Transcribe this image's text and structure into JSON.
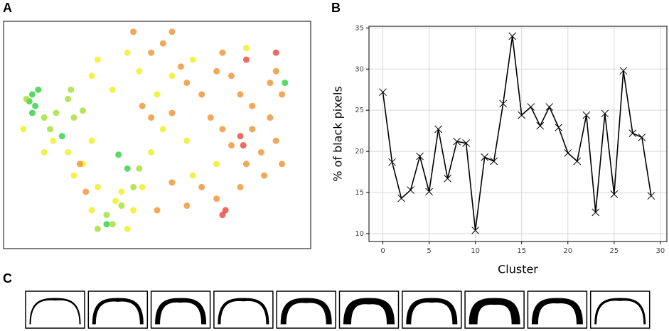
{
  "chart_data": [
    {
      "type": "scatter",
      "panel_label": "A",
      "xlim": [
        0,
        100
      ],
      "ylim": [
        5,
        100
      ],
      "series": [
        {
          "color": "#22cc33",
          "x": [
            7,
            8,
            9,
            10,
            8,
            37,
            40,
            33,
            93,
            18
          ],
          "y": [
            67,
            70,
            65,
            72,
            62,
            44,
            38,
            14,
            75,
            52
          ]
        },
        {
          "color": "#99dd22",
          "x": [
            6,
            12,
            14,
            16,
            20,
            22,
            25,
            21,
            44,
            30,
            35,
            33,
            38,
            42
          ],
          "y": [
            68,
            60,
            55,
            62,
            68,
            60,
            63,
            72,
            38,
            12,
            14,
            18,
            22,
            30
          ]
        },
        {
          "color": "#eeee11",
          "x": [
            5,
            12,
            15,
            20,
            25,
            28,
            22,
            30,
            38,
            42,
            36,
            40,
            28,
            45,
            48,
            52,
            50,
            44,
            40,
            30,
            28,
            35,
            55,
            60,
            62,
            70,
            80,
            62
          ],
          "y": [
            55,
            45,
            50,
            45,
            40,
            50,
            35,
            30,
            28,
            20,
            24,
            12,
            20,
            30,
            45,
            55,
            70,
            80,
            88,
            85,
            78,
            72,
            78,
            50,
            35,
            40,
            90,
            85
          ]
        },
        {
          "color": "#ee8a22",
          "x": [
            48,
            52,
            55,
            42,
            58,
            60,
            65,
            70,
            72,
            75,
            78,
            82,
            88,
            90,
            85,
            88,
            92,
            90,
            68,
            72,
            75,
            80,
            65,
            70,
            60,
            55,
            50,
            24,
            26,
            48,
            55,
            45,
            82,
            92,
            86,
            78
          ],
          "y": [
            88,
            92,
            97,
            97,
            82,
            75,
            70,
            80,
            88,
            78,
            70,
            65,
            60,
            50,
            45,
            75,
            70,
            80,
            60,
            55,
            48,
            40,
            30,
            25,
            22,
            32,
            20,
            40,
            28,
            60,
            62,
            65,
            55,
            40,
            35,
            30
          ]
        },
        {
          "color": "#e83a2a",
          "x": [
            80,
            78,
            79,
            72,
            73,
            90
          ],
          "y": [
            85,
            52,
            48,
            18,
            20,
            88
          ]
        }
      ]
    },
    {
      "type": "line",
      "panel_label": "B",
      "x_label": "Cluster",
      "y_label": "% of black pixels",
      "x": [
        0,
        1,
        2,
        3,
        4,
        5,
        6,
        7,
        8,
        9,
        10,
        11,
        12,
        13,
        14,
        15,
        16,
        17,
        18,
        19,
        20,
        21,
        22,
        23,
        24,
        25,
        26,
        27,
        28,
        29
      ],
      "series": [
        {
          "color": "#000000",
          "values": [
            27.2,
            18.7,
            14.3,
            15.3,
            19.4,
            15.1,
            22.7,
            16.7,
            21.2,
            21.0,
            10.4,
            19.3,
            18.8,
            25.8,
            34.0,
            24.4,
            25.4,
            23.1,
            25.4,
            22.9,
            19.8,
            18.8,
            24.4,
            12.6,
            24.6,
            14.8,
            29.8,
            22.2,
            21.7,
            14.6
          ]
        }
      ],
      "xlim": [
        -1.5,
        30.7
      ],
      "ylim": [
        9.05,
        35.2
      ],
      "xticks": [
        0,
        5,
        10,
        15,
        20,
        25,
        30
      ],
      "yticks": [
        10,
        15,
        20,
        25,
        30,
        35
      ],
      "grid": true
    }
  ],
  "panel_c": {
    "label": "C"
  }
}
